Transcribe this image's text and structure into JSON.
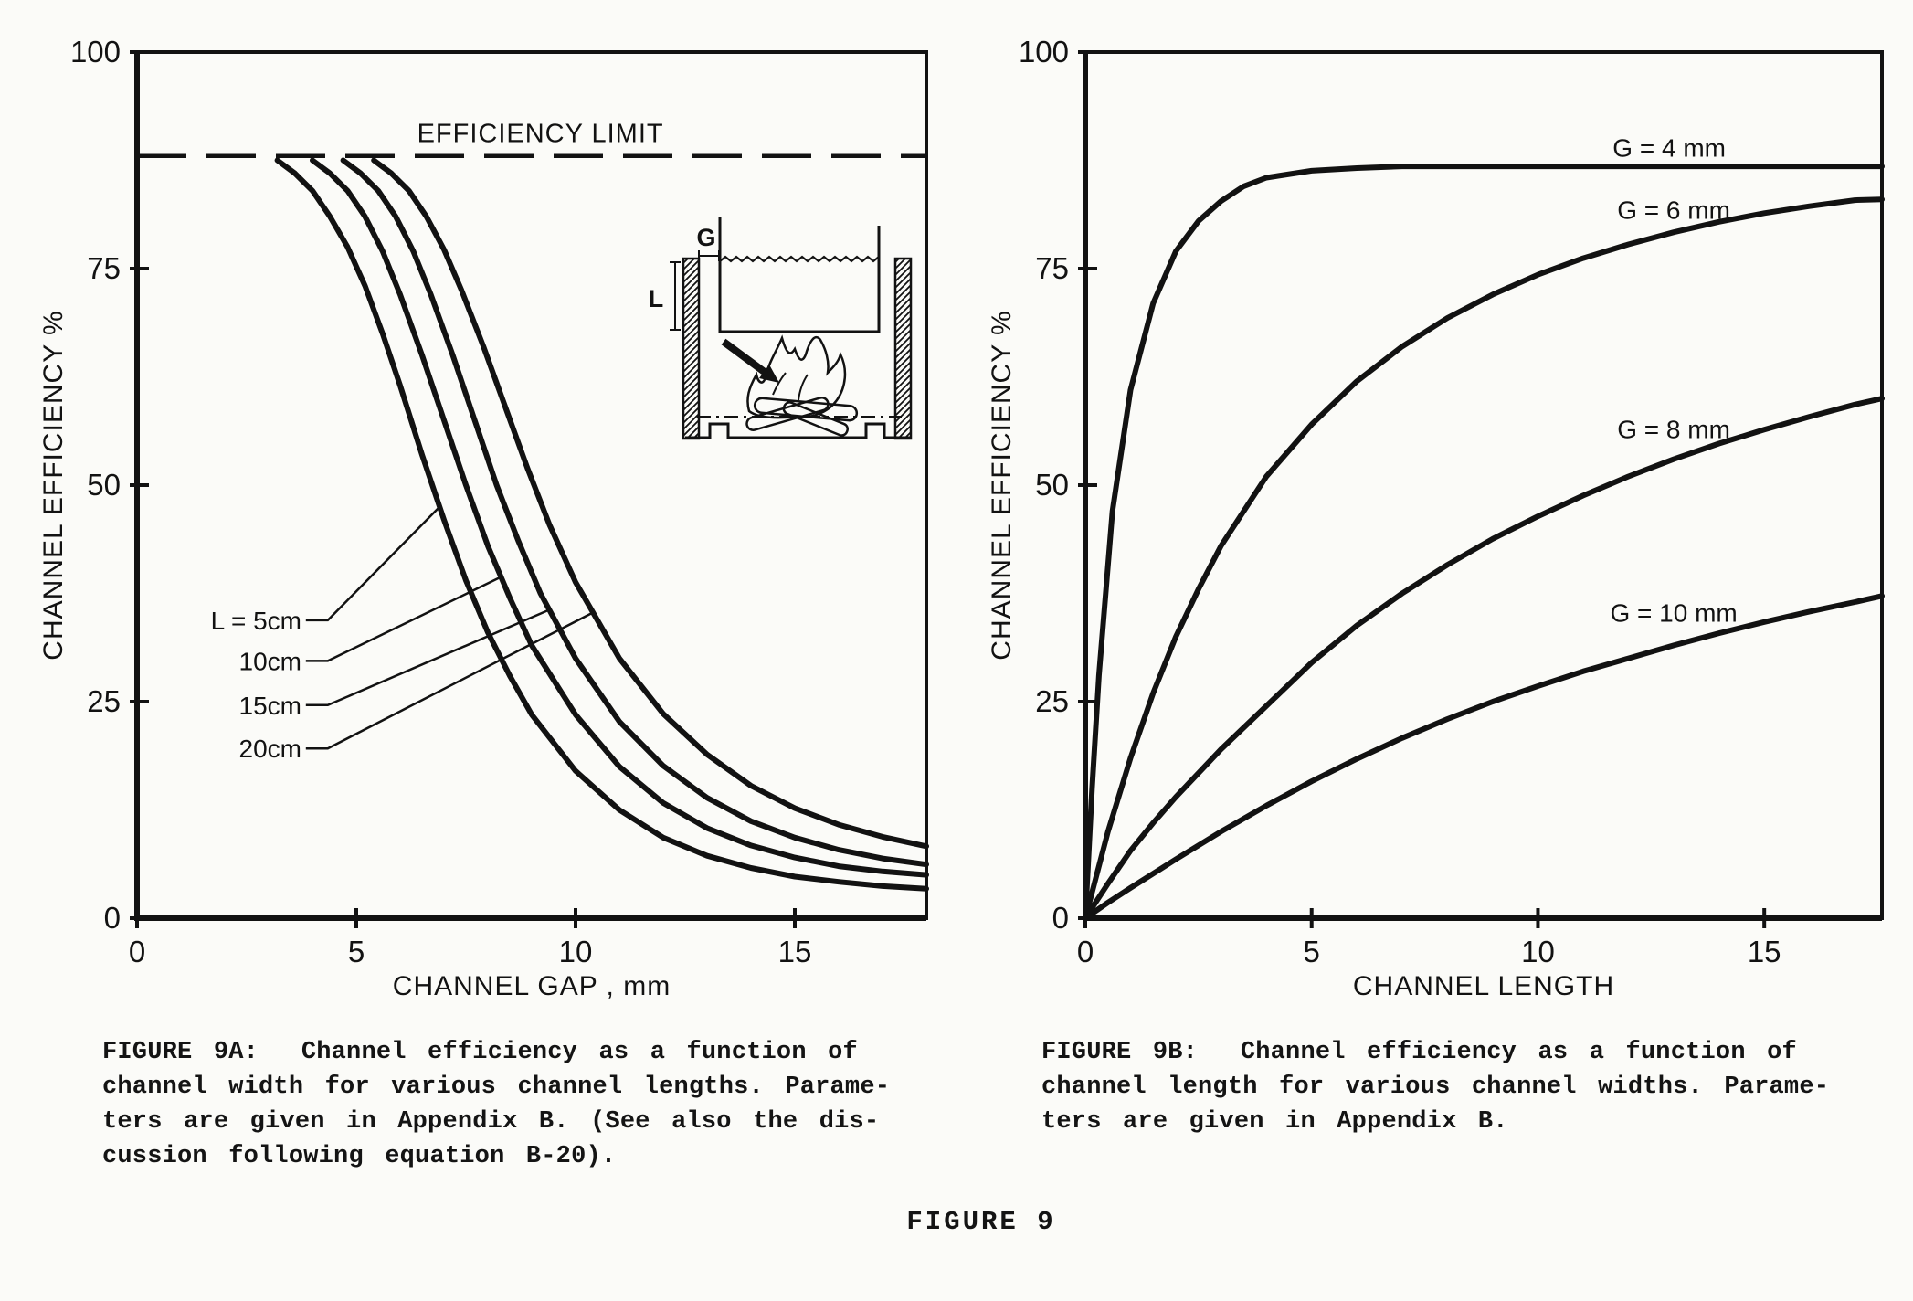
{
  "page": {
    "figure_label": "FIGURE 9"
  },
  "captions": {
    "fig9a": "FIGURE 9A:  Channel efficiency as a function of\nchannel width for various channel lengths. Parame-\nters are given in Appendix B. (See also the dis-\ncussion following equation B-20).",
    "fig9b": "FIGURE 9B:  Channel efficiency as a function of\nchannel length for various channel widths. Parame-\nters are given in Appendix B."
  },
  "inset": {
    "gap_label": "G",
    "length_label": "L"
  },
  "chart_data": [
    {
      "id": "fig9a",
      "type": "line",
      "title": "",
      "xlabel": "CHANNEL GAP , mm",
      "ylabel": "CHANNEL EFFICIENCY %",
      "xlim": [
        0,
        18
      ],
      "ylim": [
        0,
        100
      ],
      "xticks": [
        0,
        5,
        10,
        15
      ],
      "yticks": [
        0,
        25,
        50,
        75,
        100
      ],
      "grid": false,
      "efficiency_limit": {
        "value": 88,
        "label": "EFFICIENCY LIMIT",
        "label_xy": [
          9.2,
          89.6
        ]
      },
      "series": [
        {
          "name": "L = 5cm",
          "label_xy": [
            3.75,
            34.4
          ],
          "label_anchor": "end",
          "leader": [
            [
              3.85,
              34.4
            ],
            [
              4.35,
              34.4
            ],
            [
              6.9,
              47.5
            ]
          ],
          "points": [
            [
              3.2,
              87.5
            ],
            [
              3.6,
              86
            ],
            [
              4,
              84
            ],
            [
              4.4,
              81
            ],
            [
              4.8,
              77.5
            ],
            [
              5.2,
              73
            ],
            [
              5.6,
              67.5
            ],
            [
              6,
              61.5
            ],
            [
              6.5,
              53.5
            ],
            [
              7,
              46
            ],
            [
              7.5,
              39
            ],
            [
              8,
              33
            ],
            [
              8.5,
              28
            ],
            [
              9,
              23.5
            ],
            [
              10,
              17
            ],
            [
              11,
              12.5
            ],
            [
              12,
              9.3
            ],
            [
              13,
              7.2
            ],
            [
              14,
              5.8
            ],
            [
              15,
              4.8
            ],
            [
              16,
              4.2
            ],
            [
              17,
              3.7
            ],
            [
              18,
              3.4
            ]
          ]
        },
        {
          "name": "10cm",
          "label_xy": [
            3.75,
            29.7
          ],
          "label_anchor": "end",
          "leader": [
            [
              3.85,
              29.7
            ],
            [
              4.35,
              29.7
            ],
            [
              8.3,
              39.4
            ]
          ],
          "points": [
            [
              4,
              87.5
            ],
            [
              4.4,
              86
            ],
            [
              4.8,
              84
            ],
            [
              5.2,
              81
            ],
            [
              5.6,
              77
            ],
            [
              6,
              72
            ],
            [
              6.5,
              65
            ],
            [
              7,
              57.5
            ],
            [
              7.5,
              50
            ],
            [
              8,
              43
            ],
            [
              8.5,
              37
            ],
            [
              9,
              31.5
            ],
            [
              10,
              23.5
            ],
            [
              11,
              17.5
            ],
            [
              12,
              13.3
            ],
            [
              13,
              10.4
            ],
            [
              14,
              8.4
            ],
            [
              15,
              7
            ],
            [
              16,
              6
            ],
            [
              17,
              5.4
            ],
            [
              18,
              5
            ]
          ]
        },
        {
          "name": "15cm",
          "label_xy": [
            3.75,
            24.6
          ],
          "label_anchor": "end",
          "leader": [
            [
              3.85,
              24.6
            ],
            [
              4.35,
              24.6
            ],
            [
              9.4,
              35.6
            ]
          ],
          "points": [
            [
              4.7,
              87.5
            ],
            [
              5.1,
              86
            ],
            [
              5.5,
              84
            ],
            [
              5.9,
              81
            ],
            [
              6.3,
              77
            ],
            [
              6.7,
              72
            ],
            [
              7.2,
              65
            ],
            [
              7.7,
              57.5
            ],
            [
              8.2,
              50
            ],
            [
              8.7,
              43.5
            ],
            [
              9.2,
              37.5
            ],
            [
              10,
              30
            ],
            [
              11,
              22.7
            ],
            [
              12,
              17.6
            ],
            [
              13,
              13.9
            ],
            [
              14,
              11.2
            ],
            [
              15,
              9.3
            ],
            [
              16,
              7.9
            ],
            [
              17,
              6.9
            ],
            [
              18,
              6.2
            ]
          ]
        },
        {
          "name": "20cm",
          "label_xy": [
            3.75,
            19.6
          ],
          "label_anchor": "end",
          "leader": [
            [
              3.85,
              19.6
            ],
            [
              4.35,
              19.6
            ],
            [
              10.4,
              35.3
            ]
          ],
          "points": [
            [
              5.4,
              87.5
            ],
            [
              5.8,
              86
            ],
            [
              6.2,
              84
            ],
            [
              6.6,
              81
            ],
            [
              7,
              77.2
            ],
            [
              7.4,
              72.5
            ],
            [
              7.9,
              66
            ],
            [
              8.4,
              59
            ],
            [
              8.9,
              52
            ],
            [
              9.4,
              45.5
            ],
            [
              10,
              38.8
            ],
            [
              11,
              30
            ],
            [
              12,
              23.6
            ],
            [
              13,
              18.9
            ],
            [
              14,
              15.3
            ],
            [
              15,
              12.7
            ],
            [
              16,
              10.8
            ],
            [
              17,
              9.4
            ],
            [
              18,
              8.3
            ]
          ]
        }
      ]
    },
    {
      "id": "fig9b",
      "type": "line",
      "title": "",
      "xlabel": "CHANNEL LENGTH",
      "ylabel": "CHANNEL EFFICIENCY %",
      "xlim": [
        0,
        17.6
      ],
      "ylim": [
        0,
        100
      ],
      "xticks": [
        0,
        5,
        10,
        15
      ],
      "yticks": [
        0,
        25,
        50,
        75,
        100
      ],
      "grid": false,
      "series": [
        {
          "name": "G = 4 mm",
          "label_xy": [
            12.9,
            89
          ],
          "label_anchor": "middle",
          "points": [
            [
              0,
              0
            ],
            [
              0.15,
              15
            ],
            [
              0.3,
              28
            ],
            [
              0.6,
              47
            ],
            [
              1,
              61
            ],
            [
              1.5,
              71
            ],
            [
              2,
              77
            ],
            [
              2.5,
              80.5
            ],
            [
              3,
              82.8
            ],
            [
              3.5,
              84.5
            ],
            [
              4,
              85.5
            ],
            [
              5,
              86.3
            ],
            [
              6,
              86.6
            ],
            [
              7,
              86.8
            ],
            [
              8,
              86.8
            ],
            [
              10,
              86.8
            ],
            [
              12,
              86.8
            ],
            [
              14,
              86.8
            ],
            [
              16,
              86.8
            ],
            [
              17.6,
              86.8
            ]
          ]
        },
        {
          "name": "G = 6 mm",
          "label_xy": [
            13.0,
            81.8
          ],
          "label_anchor": "middle",
          "points": [
            [
              0,
              0
            ],
            [
              0.5,
              10
            ],
            [
              1,
              18.5
            ],
            [
              1.5,
              26
            ],
            [
              2,
              32.5
            ],
            [
              2.5,
              38
            ],
            [
              3,
              43
            ],
            [
              4,
              51
            ],
            [
              5,
              57
            ],
            [
              6,
              62
            ],
            [
              7,
              66
            ],
            [
              8,
              69.3
            ],
            [
              9,
              72
            ],
            [
              10,
              74.3
            ],
            [
              11,
              76.2
            ],
            [
              12,
              77.8
            ],
            [
              13,
              79.2
            ],
            [
              14,
              80.4
            ],
            [
              15,
              81.4
            ],
            [
              16,
              82.2
            ],
            [
              17,
              82.9
            ],
            [
              17.6,
              83
            ]
          ]
        },
        {
          "name": "G = 8 mm",
          "label_xy": [
            13.0,
            56.5
          ],
          "label_anchor": "middle",
          "points": [
            [
              0,
              0
            ],
            [
              0.5,
              4
            ],
            [
              1,
              7.8
            ],
            [
              1.5,
              11
            ],
            [
              2,
              14
            ],
            [
              3,
              19.5
            ],
            [
              4,
              24.5
            ],
            [
              5,
              29.5
            ],
            [
              6,
              33.8
            ],
            [
              7,
              37.5
            ],
            [
              8,
              40.8
            ],
            [
              9,
              43.8
            ],
            [
              10,
              46.4
            ],
            [
              11,
              48.8
            ],
            [
              12,
              51
            ],
            [
              13,
              53
            ],
            [
              14,
              54.8
            ],
            [
              15,
              56.4
            ],
            [
              16,
              57.9
            ],
            [
              17,
              59.3
            ],
            [
              17.6,
              60
            ]
          ]
        },
        {
          "name": "G = 10 mm",
          "label_xy": [
            13.0,
            35.3
          ],
          "label_anchor": "middle",
          "points": [
            [
              0,
              0
            ],
            [
              0.5,
              1.8
            ],
            [
              1,
              3.5
            ],
            [
              2,
              6.8
            ],
            [
              3,
              10
            ],
            [
              4,
              13
            ],
            [
              5,
              15.8
            ],
            [
              6,
              18.4
            ],
            [
              7,
              20.8
            ],
            [
              8,
              23
            ],
            [
              9,
              25
            ],
            [
              10,
              26.8
            ],
            [
              11,
              28.5
            ],
            [
              12,
              30
            ],
            [
              13,
              31.5
            ],
            [
              14,
              32.9
            ],
            [
              15,
              34.2
            ],
            [
              16,
              35.4
            ],
            [
              17,
              36.5
            ],
            [
              17.6,
              37.2
            ]
          ]
        }
      ]
    }
  ]
}
